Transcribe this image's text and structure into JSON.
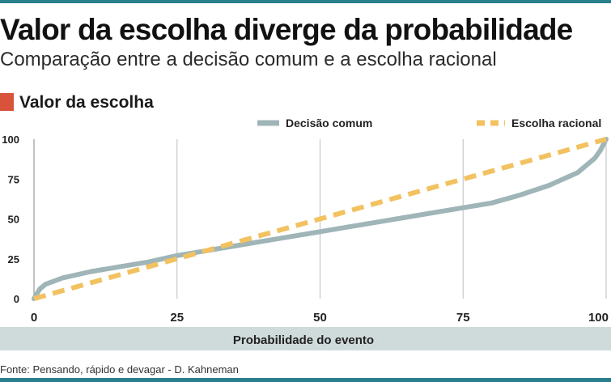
{
  "header": {
    "title": "Valor da escolha diverge da probabilidade",
    "subtitle": "Comparação entre a decisão comum e a escolha racional",
    "section_label": "Valor da escolha"
  },
  "footer": {
    "source": "Fonte: Pensando, rápido e devagar - D. Kahneman"
  },
  "colors": {
    "accent": "#d9533b",
    "series_common": "#9fb5b8",
    "series_rational": "#f2c261",
    "axis_band": "#cfdadb",
    "rule": "#2a7f8c"
  },
  "chart_data": {
    "type": "line",
    "title": "Valor da escolha",
    "xlabel": "Probabilidade do evento",
    "ylabel": "",
    "xlim": [
      0,
      100
    ],
    "ylim": [
      0,
      100
    ],
    "xticks": [
      0,
      25,
      50,
      75,
      100
    ],
    "yticks": [
      0,
      25,
      50,
      75,
      100
    ],
    "grid": "vertical",
    "legend": "top-right",
    "series": [
      {
        "name": "Decisão comum",
        "style": "solid",
        "x": [
          0,
          1,
          2,
          5,
          10,
          15,
          20,
          25,
          30,
          35,
          40,
          45,
          50,
          55,
          60,
          65,
          70,
          75,
          80,
          85,
          90,
          95,
          98,
          99,
          100
        ],
        "y": [
          0,
          6,
          9,
          13,
          17,
          20,
          23,
          27,
          30,
          33,
          36,
          39,
          42,
          45,
          48,
          51,
          54,
          57,
          60,
          65,
          71,
          79,
          88,
          93,
          100
        ]
      },
      {
        "name": "Escolha racional",
        "style": "dashed",
        "x": [
          0,
          100
        ],
        "y": [
          0,
          100
        ]
      }
    ]
  }
}
